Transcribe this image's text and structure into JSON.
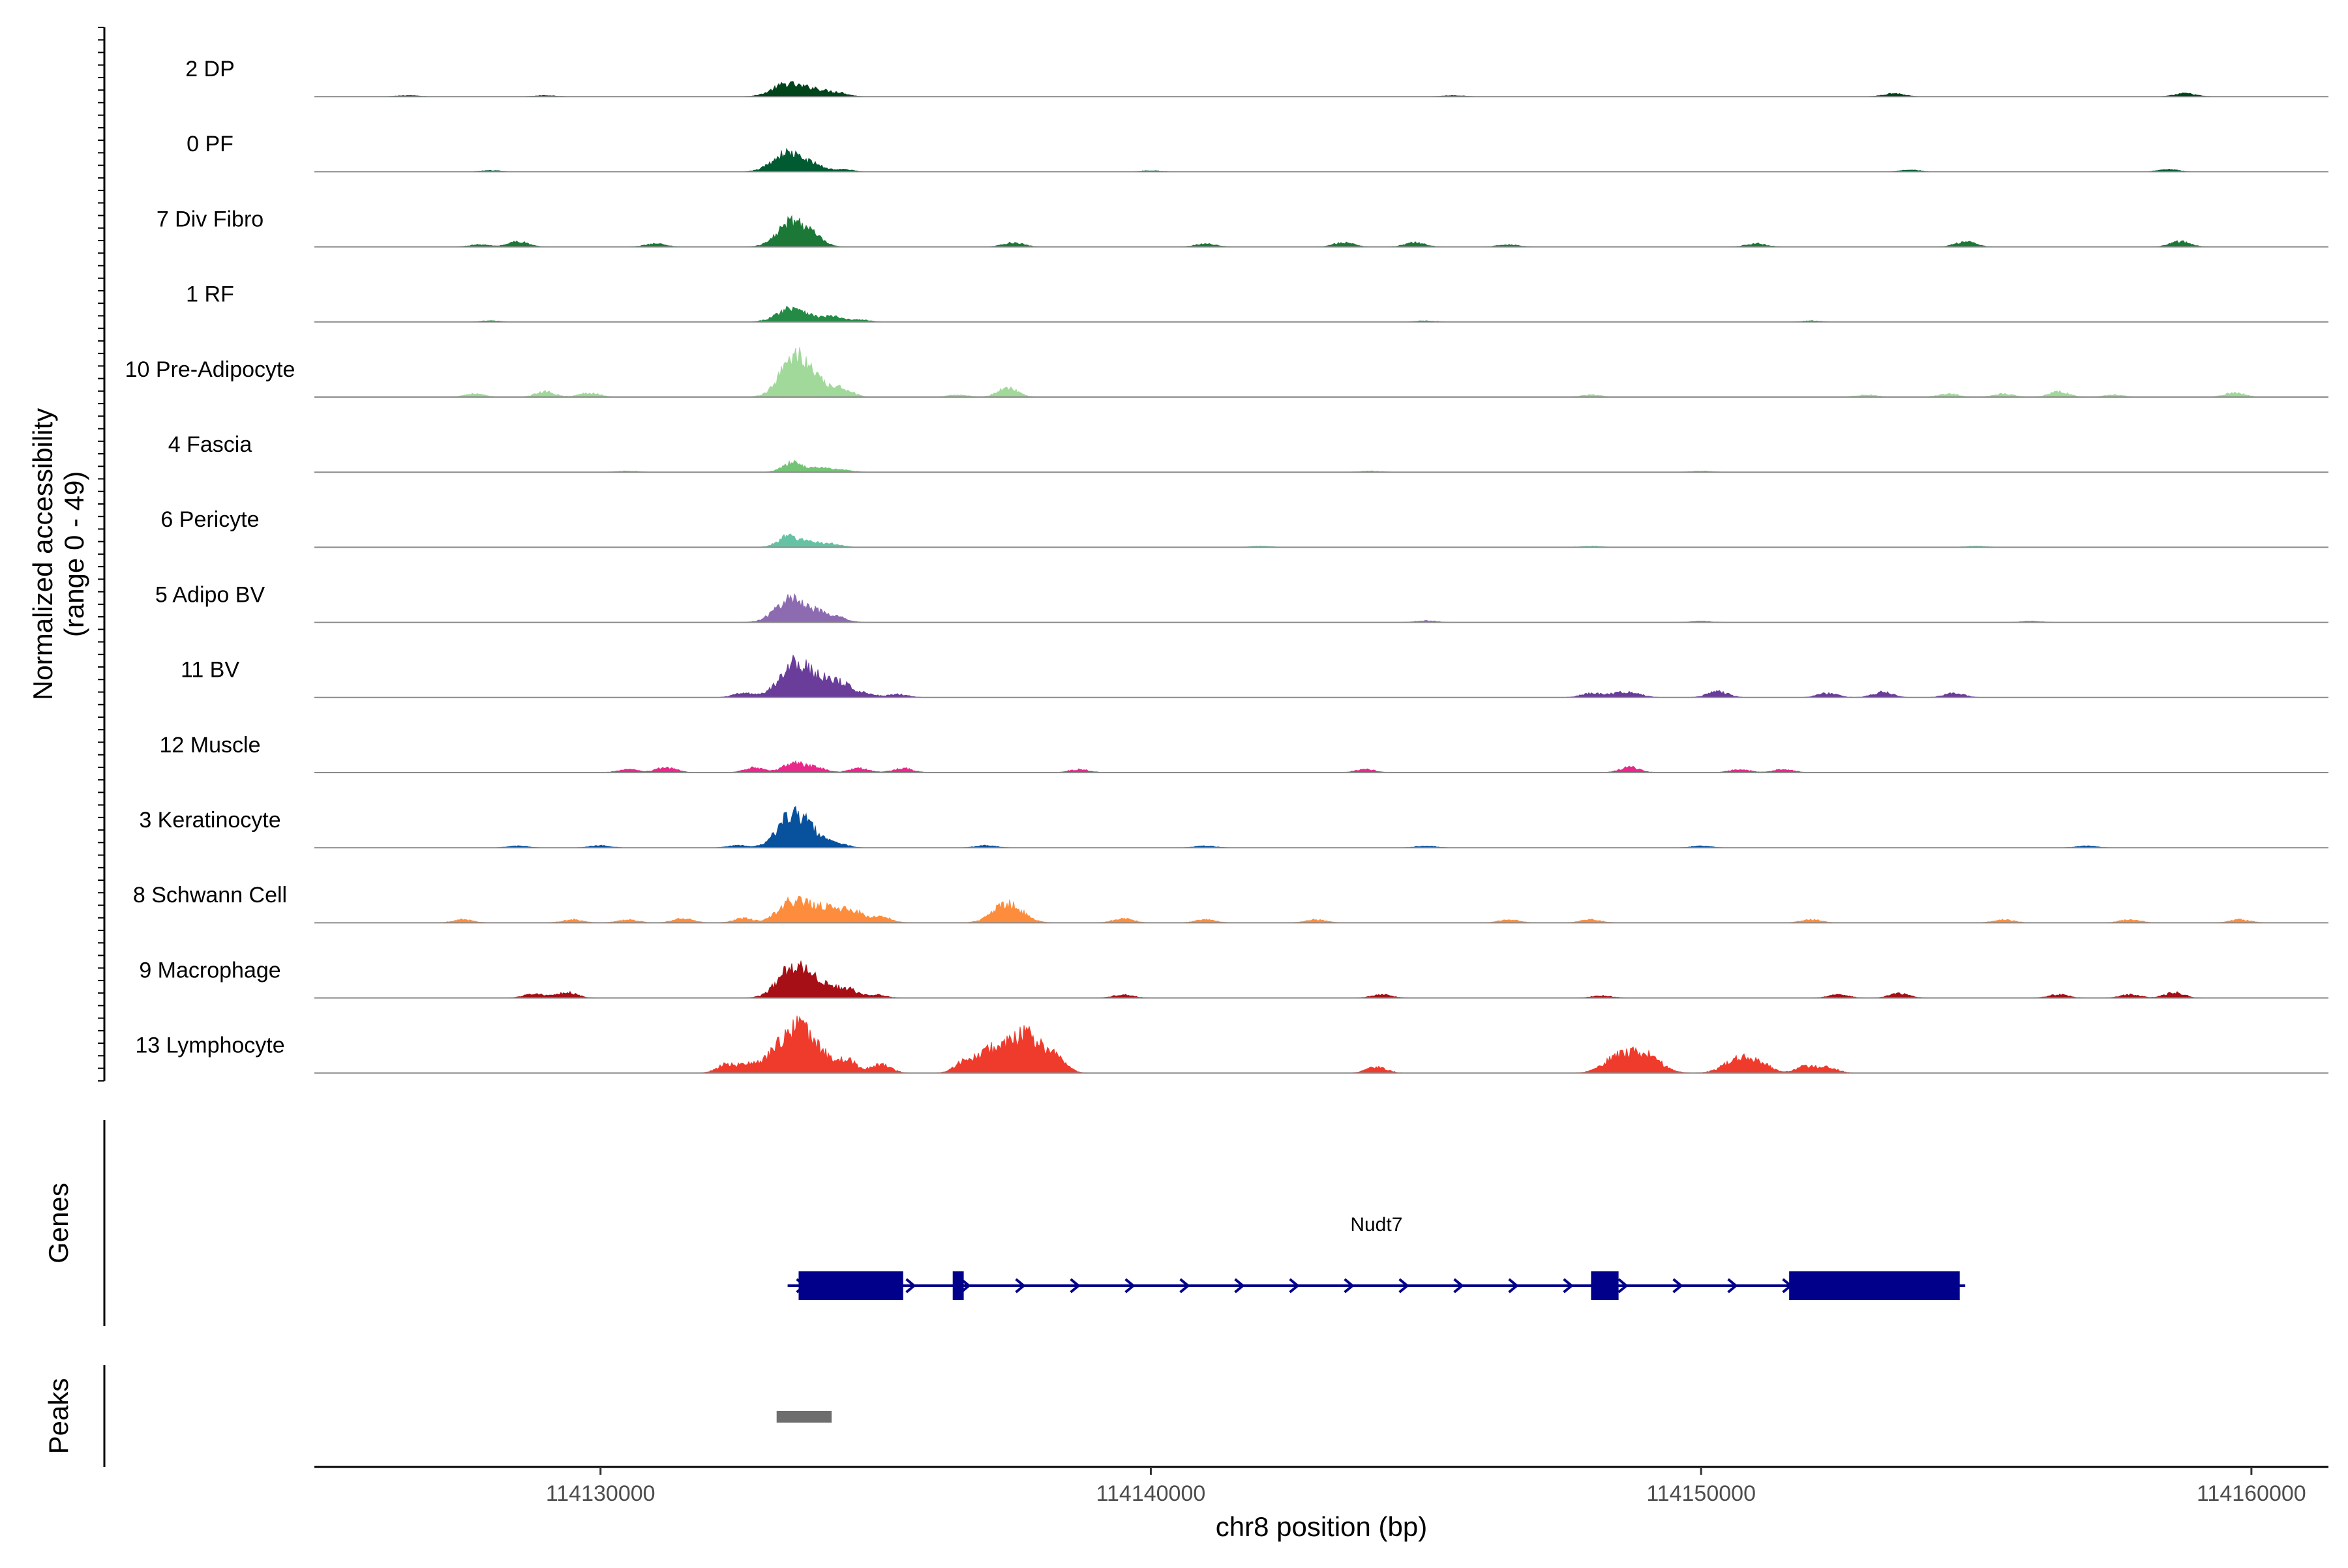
{
  "chart_data": {
    "type": "area",
    "chromosome": "chr8",
    "xlim": [
      114124800,
      114161400
    ],
    "ylim": [
      0,
      49
    ],
    "ylabel": "Normalized accessibility",
    "ylabel_range": "(range 0 - 49)",
    "xlabel": "chr8 position (bp)",
    "x_ticks": [
      114130000,
      114140000,
      114150000,
      114160000
    ],
    "x_tick_labels": [
      "114130000",
      "114140000",
      "114150000",
      "114160000"
    ],
    "tracks": [
      {
        "name": "2 DP",
        "color": "#00441b",
        "peaks": [
          [
            114133400,
            12
          ],
          [
            114133900,
            6
          ],
          [
            114134300,
            4
          ],
          [
            114153500,
            3
          ],
          [
            114158800,
            3
          ],
          [
            114126500,
            1
          ],
          [
            114145500,
            1
          ],
          [
            114129000,
            1
          ]
        ]
      },
      {
        "name": "0 PF",
        "color": "#005a32",
        "peaks": [
          [
            114133400,
            18
          ],
          [
            114133900,
            5
          ],
          [
            114134400,
            2
          ],
          [
            114158500,
            2
          ],
          [
            114153800,
            1.5
          ],
          [
            114128000,
            1
          ],
          [
            114140000,
            1
          ]
        ]
      },
      {
        "name": "7 Div Fibro",
        "color": "#1b7837",
        "peaks": [
          [
            114133500,
            24
          ],
          [
            114133900,
            5
          ],
          [
            114128500,
            5
          ],
          [
            114137500,
            4
          ],
          [
            114141000,
            3
          ],
          [
            114143500,
            4
          ],
          [
            114144800,
            4
          ],
          [
            114154800,
            5
          ],
          [
            114158700,
            5
          ],
          [
            114151000,
            3
          ],
          [
            114146500,
            2
          ],
          [
            114131000,
            3
          ],
          [
            114127800,
            2
          ]
        ]
      },
      {
        "name": "1 RF",
        "color": "#238b45",
        "peaks": [
          [
            114133500,
            14
          ],
          [
            114134200,
            5
          ],
          [
            114134700,
            2
          ],
          [
            114128000,
            1
          ],
          [
            114145000,
            1
          ],
          [
            114152000,
            1
          ]
        ]
      },
      {
        "name": "10 Pre-Adipocyte",
        "color": "#a1d99b",
        "peaks": [
          [
            114133550,
            40
          ],
          [
            114134000,
            7
          ],
          [
            114134400,
            8
          ],
          [
            114137400,
            9
          ],
          [
            114129000,
            5
          ],
          [
            114129800,
            4
          ],
          [
            114127700,
            3
          ],
          [
            114136500,
            2
          ],
          [
            114148000,
            2
          ],
          [
            114154500,
            3
          ],
          [
            114156500,
            5
          ],
          [
            114157500,
            2
          ],
          [
            114159700,
            4
          ],
          [
            114155500,
            3
          ],
          [
            114153000,
            2
          ]
        ]
      },
      {
        "name": "4 Fascia",
        "color": "#74c476",
        "peaks": [
          [
            114133500,
            9
          ],
          [
            114134000,
            4
          ],
          [
            114134400,
            2
          ],
          [
            114130500,
            1
          ],
          [
            114144000,
            1
          ],
          [
            114150000,
            1
          ]
        ]
      },
      {
        "name": "6 Pericyte",
        "color": "#66c2a4",
        "peaks": [
          [
            114133400,
            10
          ],
          [
            114133800,
            5
          ],
          [
            114134200,
            3
          ],
          [
            114142000,
            1
          ],
          [
            114148000,
            1
          ],
          [
            114155000,
            1
          ]
        ]
      },
      {
        "name": "5 Adipo BV",
        "color": "#8c6bb1",
        "peaks": [
          [
            114133450,
            22
          ],
          [
            114133900,
            8
          ],
          [
            114134300,
            5
          ],
          [
            114145000,
            1.5
          ],
          [
            114150000,
            1
          ],
          [
            114156000,
            1
          ]
        ]
      },
      {
        "name": "11 BV",
        "color": "#6a3d9a",
        "peaks": [
          [
            114133500,
            30
          ],
          [
            114134000,
            15
          ],
          [
            114134400,
            9
          ],
          [
            114134800,
            4
          ],
          [
            114132600,
            4
          ],
          [
            114135400,
            3
          ],
          [
            114148000,
            4
          ],
          [
            114148500,
            4
          ],
          [
            114150300,
            6
          ],
          [
            114152300,
            4
          ],
          [
            114153300,
            5
          ],
          [
            114154600,
            4
          ],
          [
            114148800,
            3
          ]
        ]
      },
      {
        "name": "12 Muscle",
        "color": "#e7298a",
        "peaks": [
          [
            114133500,
            9
          ],
          [
            114133900,
            5
          ],
          [
            114132800,
            5
          ],
          [
            114131200,
            5
          ],
          [
            114130500,
            3
          ],
          [
            114135500,
            4
          ],
          [
            114134700,
            4
          ],
          [
            114138700,
            3
          ],
          [
            114143900,
            3
          ],
          [
            114148700,
            5
          ],
          [
            114150700,
            3
          ],
          [
            114151500,
            3
          ]
        ]
      },
      {
        "name": "3 Keratinocyte",
        "color": "#08519c",
        "peaks": [
          [
            114133500,
            32
          ],
          [
            114133900,
            7
          ],
          [
            114134300,
            4
          ],
          [
            114132500,
            2
          ],
          [
            114137000,
            2
          ],
          [
            114130000,
            2
          ],
          [
            114141000,
            1.5
          ],
          [
            114150000,
            1.5
          ],
          [
            114157000,
            1.5
          ],
          [
            114128500,
            1.5
          ],
          [
            114145000,
            1.5
          ]
        ]
      },
      {
        "name": "8 Schwann Cell",
        "color": "#fd8d3c",
        "peaks": [
          [
            114133500,
            20
          ],
          [
            114134100,
            14
          ],
          [
            114134600,
            10
          ],
          [
            114135100,
            6
          ],
          [
            114137400,
            18
          ],
          [
            114127500,
            3
          ],
          [
            114129500,
            3
          ],
          [
            114130500,
            3
          ],
          [
            114131500,
            4
          ],
          [
            114132600,
            4
          ],
          [
            114139500,
            4
          ],
          [
            114141000,
            3
          ],
          [
            114143000,
            3
          ],
          [
            114146500,
            3
          ],
          [
            114148000,
            3
          ],
          [
            114152000,
            3
          ],
          [
            114155500,
            3
          ],
          [
            114157800,
            3
          ],
          [
            114159800,
            3
          ]
        ]
      },
      {
        "name": "9 Macrophage",
        "color": "#a50f15",
        "peaks": [
          [
            114133500,
            30
          ],
          [
            114134000,
            12
          ],
          [
            114134500,
            7
          ],
          [
            114135000,
            3
          ],
          [
            114128800,
            4
          ],
          [
            114129400,
            5
          ],
          [
            114139500,
            3
          ],
          [
            114144200,
            3
          ],
          [
            114148200,
            2
          ],
          [
            114152500,
            3
          ],
          [
            114153600,
            4
          ],
          [
            114156500,
            3
          ],
          [
            114157800,
            3
          ],
          [
            114158600,
            5
          ]
        ]
      },
      {
        "name": "13 Lymphocyte",
        "color": "#ef3b2c",
        "peaks": [
          [
            114133550,
            36
          ],
          [
            114133200,
            12
          ],
          [
            114134000,
            15
          ],
          [
            114134500,
            10
          ],
          [
            114132300,
            8
          ],
          [
            114132700,
            6
          ],
          [
            114135100,
            8
          ],
          [
            114136600,
            8
          ],
          [
            114137000,
            12
          ],
          [
            114137300,
            14
          ],
          [
            114137700,
            25
          ],
          [
            114138000,
            12
          ],
          [
            114138300,
            8
          ],
          [
            114144100,
            6
          ],
          [
            114148500,
            15
          ],
          [
            114149000,
            17
          ],
          [
            114150700,
            14
          ],
          [
            114151100,
            7
          ],
          [
            114151900,
            6
          ],
          [
            114152300,
            5
          ]
        ]
      }
    ],
    "gene": {
      "name": "Nudt7",
      "color": "#00008b",
      "strand": "+",
      "start": 114133400,
      "end": 114154800,
      "exons": [
        [
          114133600,
          114135500
        ],
        [
          114136400,
          114136600
        ],
        [
          114148000,
          114148500
        ],
        [
          114151600,
          114154700
        ]
      ]
    },
    "peak_regions": [
      {
        "start": 114133200,
        "end": 114134200,
        "color": "#6e6e6e"
      }
    ],
    "panels": [
      "Genes",
      "Peaks"
    ]
  }
}
